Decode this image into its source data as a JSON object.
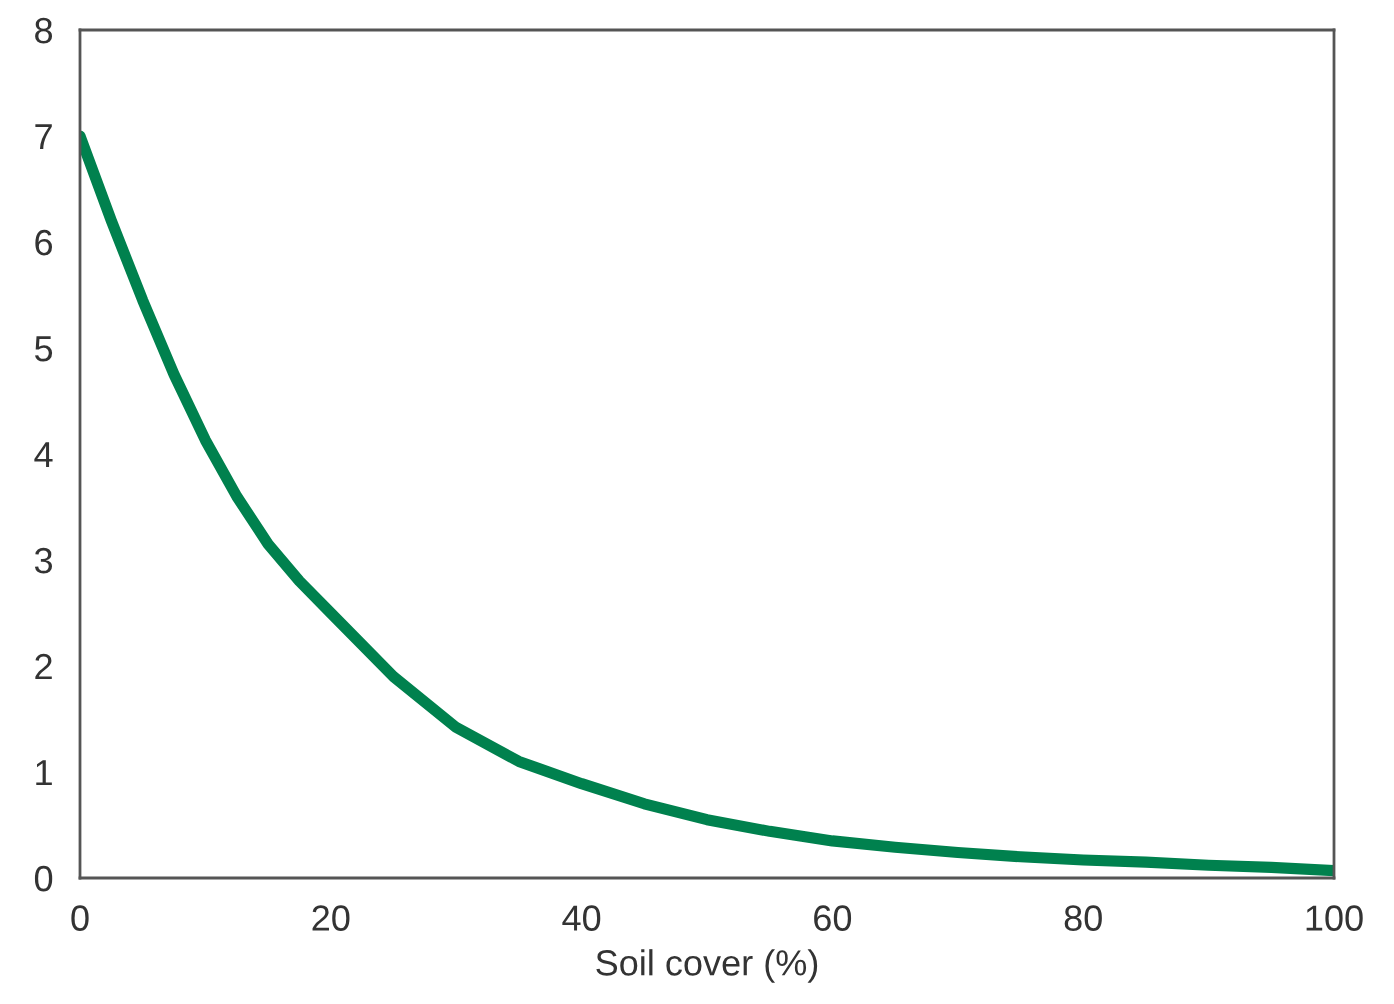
{
  "chart_data": {
    "type": "line",
    "xlabel": "Soil cover (%)",
    "x": [
      0,
      2.5,
      5,
      7.5,
      10,
      12.5,
      15,
      17.5,
      20,
      25,
      30,
      35,
      40,
      45,
      50,
      55,
      60,
      65,
      70,
      75,
      80,
      85,
      90,
      95,
      100
    ],
    "series": [
      {
        "color": "#00814e",
        "values": [
          7.0,
          6.2,
          5.45,
          4.75,
          4.13,
          3.6,
          3.15,
          2.8,
          2.5,
          1.9,
          1.42,
          1.1,
          0.89,
          0.7,
          0.55,
          0.44,
          0.35,
          0.29,
          0.24,
          0.2,
          0.17,
          0.15,
          0.12,
          0.1,
          0.07
        ]
      }
    ],
    "xlim": [
      0,
      100
    ],
    "ylim": [
      0,
      8
    ],
    "xticks": [
      0,
      20,
      40,
      60,
      80,
      100
    ],
    "yticks": [
      0,
      1,
      2,
      3,
      4,
      5,
      6,
      7,
      8
    ],
    "grid": false,
    "legend": false,
    "marker": "none",
    "line_style": "solid"
  }
}
